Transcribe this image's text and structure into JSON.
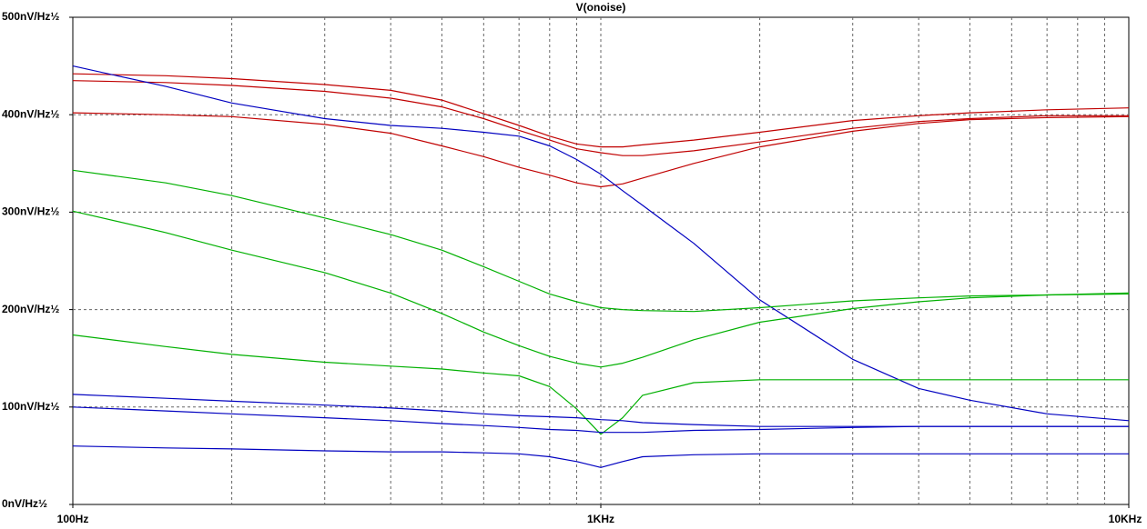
{
  "chart_data": {
    "type": "line",
    "title": "V(onoise)",
    "x": [
      100,
      150,
      200,
      300,
      400,
      500,
      600,
      700,
      800,
      900,
      1000,
      1100,
      1200,
      1500,
      2000,
      3000,
      4000,
      5000,
      7000,
      10000
    ],
    "xscale": "log",
    "xlim": [
      100,
      10000
    ],
    "xticks": [
      {
        "value": 100,
        "label": "100Hz"
      },
      {
        "value": 1000,
        "label": "1KHz"
      },
      {
        "value": 10000,
        "label": "10KHz"
      }
    ],
    "xminorticks": [
      200,
      300,
      400,
      500,
      600,
      700,
      800,
      900,
      2000,
      3000,
      4000,
      5000,
      6000,
      7000,
      8000,
      9000
    ],
    "ylim": [
      0,
      500
    ],
    "yticks": [
      {
        "value": 0,
        "label": "0nV/Hz½"
      },
      {
        "value": 100,
        "label": "100nV/Hz½"
      },
      {
        "value": 200,
        "label": "200nV/Hz½"
      },
      {
        "value": 300,
        "label": "300nV/Hz½"
      },
      {
        "value": 400,
        "label": "400nV/Hz½"
      },
      {
        "value": 500,
        "label": "500nV/Hz½"
      }
    ],
    "grid": true,
    "series": [
      {
        "color": "#c00000",
        "values": [
          442,
          440,
          437,
          431,
          425,
          415,
          401,
          389,
          378,
          370,
          367,
          367,
          369,
          374,
          382,
          394,
          399,
          402,
          405,
          407
        ]
      },
      {
        "color": "#c00000",
        "values": [
          435,
          433,
          430,
          424,
          417,
          408,
          396,
          384,
          374,
          365,
          361,
          358,
          358,
          363,
          372,
          386,
          393,
          396,
          399,
          399
        ]
      },
      {
        "color": "#c00000",
        "values": [
          402,
          400,
          398,
          390,
          381,
          368,
          357,
          346,
          338,
          330,
          326,
          329,
          335,
          350,
          367,
          383,
          391,
          395,
          397,
          398
        ]
      },
      {
        "color": "#0000c0",
        "values": [
          450,
          429,
          412,
          396,
          389,
          386,
          382,
          378,
          368,
          354,
          339,
          322,
          307,
          268,
          210,
          149,
          119,
          107,
          93,
          86
        ]
      },
      {
        "color": "#00b000",
        "values": [
          343,
          330,
          317,
          294,
          277,
          261,
          244,
          229,
          216,
          208,
          202,
          200,
          199,
          198,
          202,
          209,
          212,
          214,
          215,
          217
        ]
      },
      {
        "color": "#00b000",
        "values": [
          301,
          279,
          261,
          238,
          217,
          196,
          177,
          163,
          152,
          145,
          141,
          145,
          151,
          169,
          187,
          201,
          208,
          212,
          215,
          216
        ]
      },
      {
        "color": "#00b000",
        "values": [
          174,
          162,
          154,
          146,
          142,
          139,
          135,
          132,
          121,
          98,
          72,
          89,
          112,
          125,
          128,
          128,
          128,
          128,
          128,
          128
        ]
      },
      {
        "color": "#0000c0",
        "values": [
          113,
          109,
          106,
          102,
          99,
          96,
          93,
          91,
          90,
          89,
          87,
          86,
          84,
          82,
          80,
          80,
          80,
          80,
          80,
          80
        ]
      },
      {
        "color": "#0000c0",
        "values": [
          100,
          96,
          93,
          89,
          86,
          83,
          81,
          79,
          77,
          76,
          74,
          74,
          74,
          76,
          77,
          79,
          80,
          80,
          80,
          80
        ]
      },
      {
        "color": "#0000c0",
        "values": [
          60,
          58,
          57,
          55,
          54,
          54,
          53,
          52,
          49,
          44,
          38,
          44,
          49,
          51,
          52,
          52,
          52,
          52,
          52,
          52
        ]
      }
    ]
  }
}
